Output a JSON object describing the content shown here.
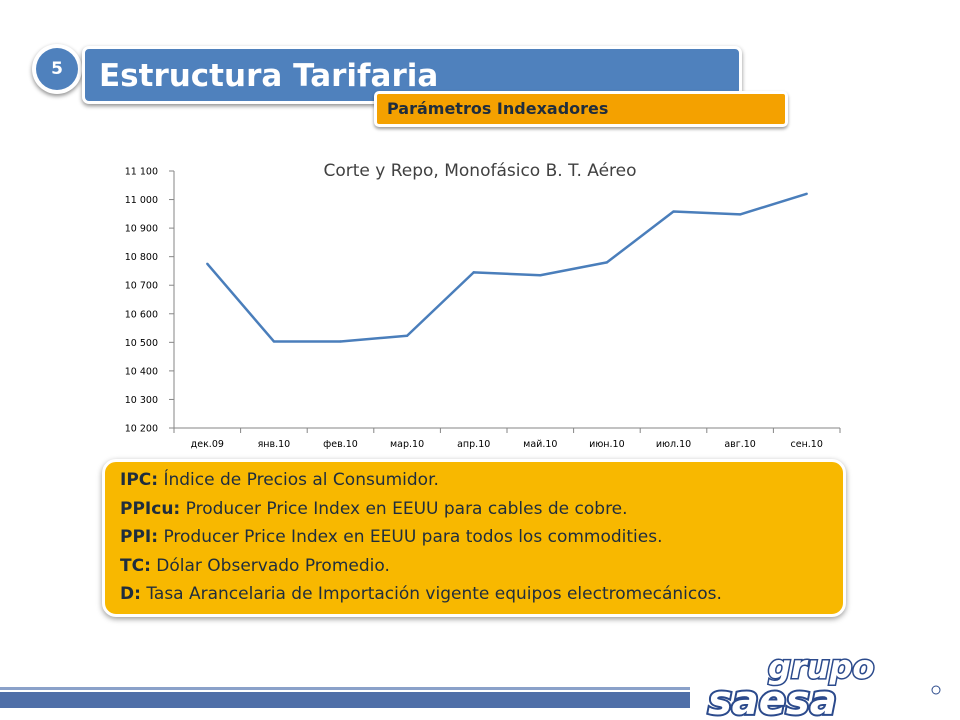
{
  "header": {
    "slide_number": "5",
    "title": "Estructura Tarifaria",
    "subtitle": "Parámetros Indexadores"
  },
  "chart_data": {
    "type": "line",
    "title": "Corte y Repo, Monofásico B. T. Aéreo",
    "categories": [
      "дек.09",
      "янв.10",
      "фев.10",
      "мар.10",
      "апр.10",
      "май.10",
      "июн.10",
      "июл.10",
      "авг.10",
      "сен.10"
    ],
    "series": [
      {
        "values": [
          10775,
          10503,
          10503,
          10523,
          10745,
          10735,
          10780,
          10958,
          10948,
          11020
        ]
      }
    ],
    "y_ticks": [
      "10 200",
      "10 300",
      "10 400",
      "10 500",
      "10 600",
      "10 700",
      "10 800",
      "10 900",
      "11 000",
      "11 100"
    ],
    "ylim": [
      10200,
      11100
    ],
    "line_color": "#4a7ebb",
    "grid": false,
    "legend": "none"
  },
  "info": {
    "lines": [
      {
        "term": "IPC:",
        "desc": " Índice de Precios al Consumidor."
      },
      {
        "term": "PPIcu:",
        "desc": " Producer Price Index en EEUU para cables de cobre."
      },
      {
        "term": "PPI:",
        "desc": " Producer Price Index en EEUU para todos los commodities."
      },
      {
        "term": "TC:",
        "desc": " Dólar Observado Promedio."
      },
      {
        "term": "D:",
        "desc": " Tasa Arancelaria de Importación vigente equipos electromecánicos."
      }
    ]
  },
  "logo": {
    "line1": "grupo",
    "line2": "saesa"
  },
  "colors": {
    "header_blue": "#4f81bd",
    "accent_orange": "#f4a100",
    "info_yellow": "#f8b800",
    "footer_blue": "#4f6fa8"
  }
}
